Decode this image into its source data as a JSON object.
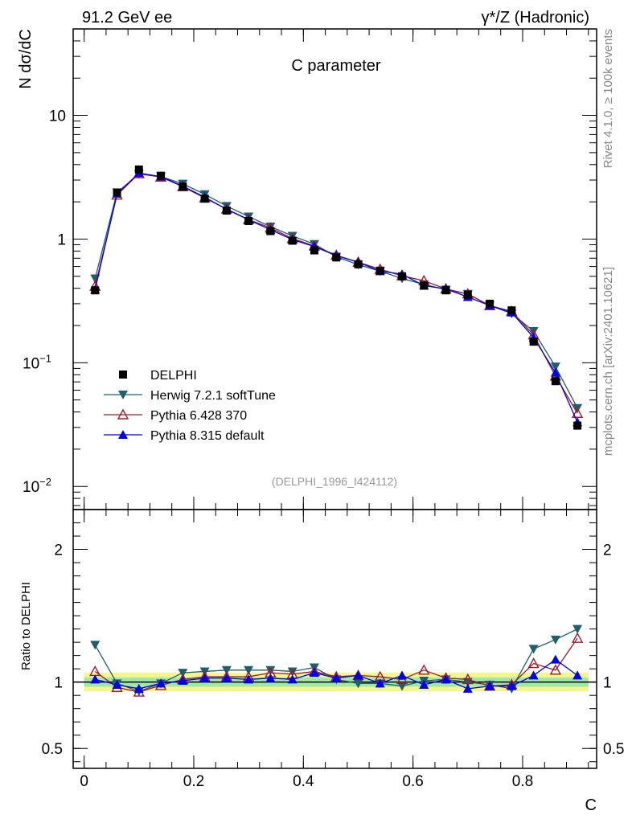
{
  "header": {
    "left": "91.2 GeV ee",
    "right": "γ*/Z (Hadronic)"
  },
  "side": {
    "rivet": "Rivet 4.1.0, ≥ 100k events",
    "mcplots": "mcplots.cern.ch [arXiv:2401.10621]"
  },
  "chart_data": {
    "type": "line",
    "title": "C parameter",
    "watermark": "(DELPHI_1996_I424112)",
    "xlabel": "C",
    "ylabel_main": "N  dσ/dC",
    "ylabel_ratio": "Ratio to DELPHI",
    "xlim": [
      -0.02,
      0.935
    ],
    "ylim_main_log": [
      0.0065,
      50
    ],
    "ylim_ratio": [
      0.35,
      2.3
    ],
    "x_ticks": [
      {
        "v": 0,
        "label": "0"
      },
      {
        "v": 0.2,
        "label": "0.2"
      },
      {
        "v": 0.4,
        "label": "0.4"
      },
      {
        "v": 0.6,
        "label": "0.6"
      },
      {
        "v": 0.8,
        "label": "0.8"
      }
    ],
    "y_ticks_main": [
      {
        "v": 10,
        "base": "10",
        "exp": ""
      },
      {
        "v": 1,
        "base": "1",
        "exp": ""
      },
      {
        "v": 0.1,
        "base": "10",
        "exp": "−1"
      },
      {
        "v": 0.01,
        "base": "10",
        "exp": "−2"
      }
    ],
    "y_ticks_ratio": [
      {
        "v": 0.5,
        "label": "0.5"
      },
      {
        "v": 1,
        "label": "1"
      },
      {
        "v": 2,
        "label": "2"
      }
    ],
    "x": [
      0.02,
      0.06,
      0.1,
      0.14,
      0.18,
      0.22,
      0.26,
      0.3,
      0.34,
      0.38,
      0.42,
      0.46,
      0.5,
      0.54,
      0.58,
      0.62,
      0.66,
      0.7,
      0.74,
      0.78,
      0.82,
      0.86,
      0.9
    ],
    "series": [
      {
        "name": "DELPHI",
        "color": "#000000",
        "marker": "square",
        "values": [
          0.385,
          2.38,
          3.65,
          3.25,
          2.65,
          2.12,
          1.7,
          1.4,
          1.16,
          0.97,
          0.81,
          0.71,
          0.625,
          0.555,
          0.5,
          0.42,
          0.385,
          0.355,
          0.3,
          0.265,
          0.148,
          0.071,
          0.031
        ],
        "ratio": [
          1,
          1,
          1,
          1,
          1,
          1,
          1,
          1,
          1,
          1,
          1,
          1,
          1,
          1,
          1,
          1,
          1,
          1,
          1,
          1,
          1,
          1,
          1
        ]
      },
      {
        "name": "Herwig 7.2.1 softTune",
        "color": "#1f5f6a",
        "marker": "triangle-down",
        "values": [
          0.48,
          2.38,
          3.35,
          3.2,
          2.8,
          2.3,
          1.85,
          1.52,
          1.26,
          1.06,
          0.91,
          0.72,
          0.62,
          0.55,
          0.48,
          0.43,
          0.39,
          0.36,
          0.29,
          0.25,
          0.18,
          0.093,
          0.043
        ],
        "ratio": [
          1.28,
          0.99,
          0.93,
          0.99,
          1.07,
          1.08,
          1.09,
          1.09,
          1.09,
          1.08,
          1.11,
          1.02,
          0.99,
          0.99,
          0.97,
          1.01,
          1.02,
          1.0,
          0.98,
          0.95,
          1.25,
          1.32,
          1.4
        ]
      },
      {
        "name": "Pythia 6.428 370",
        "color": "#9c1c2c",
        "marker": "triangle-open",
        "values": [
          0.415,
          2.27,
          3.38,
          3.17,
          2.65,
          2.15,
          1.75,
          1.44,
          1.23,
          1.01,
          0.88,
          0.74,
          0.65,
          0.57,
          0.505,
          0.46,
          0.395,
          0.36,
          0.29,
          0.26,
          0.168,
          0.078,
          0.039
        ],
        "ratio": [
          1.08,
          0.96,
          0.925,
          0.975,
          1.02,
          1.04,
          1.04,
          1.04,
          1.07,
          1.06,
          1.08,
          1.04,
          1.05,
          1.04,
          1.02,
          1.09,
          1.03,
          1.02,
          0.97,
          0.98,
          1.14,
          1.09,
          1.33
        ]
      },
      {
        "name": "Pythia 8.315 default",
        "color": "#0000e6",
        "marker": "triangle",
        "values": [
          0.39,
          2.33,
          3.42,
          3.2,
          2.68,
          2.18,
          1.74,
          1.43,
          1.19,
          0.99,
          0.87,
          0.735,
          0.65,
          0.55,
          0.52,
          0.42,
          0.395,
          0.34,
          0.29,
          0.255,
          0.16,
          0.083,
          0.033
        ],
        "ratio": [
          1.02,
          0.98,
          0.95,
          0.99,
          1.01,
          1.03,
          1.03,
          1.02,
          1.03,
          1.02,
          1.07,
          1.03,
          1.05,
          0.99,
          1.05,
          0.98,
          1.02,
          0.95,
          0.97,
          0.97,
          1.05,
          1.17,
          1.05
        ]
      }
    ]
  }
}
